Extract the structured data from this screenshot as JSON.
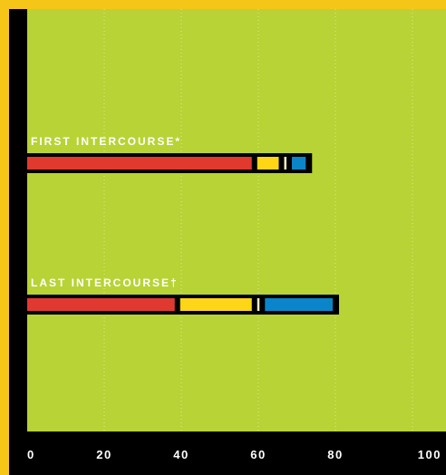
{
  "chart_data": {
    "type": "bar",
    "orientation": "horizontal",
    "stacked": true,
    "categories": [
      "FIRST INTERCOURSE*",
      "LAST INTERCOURSE†"
    ],
    "series": [
      {
        "values": [
          59,
          39
        ]
      },
      {
        "values": [
          7,
          20
        ]
      },
      {
        "values": [
          2,
          2
        ]
      },
      {
        "values": [
          5,
          19
        ]
      }
    ],
    "xlim": [
      0,
      100
    ],
    "x_ticks": [
      "0",
      "20",
      "40",
      "60",
      "80",
      "100"
    ],
    "grid": "vertical dotted",
    "colors": {
      "background": "#b7d335",
      "series": [
        "#e03a2f",
        "#ffd616",
        "#f4f0c0",
        "#0a86c8"
      ],
      "frame": "#000000",
      "outer": "#f5c518",
      "text": "#ffffff"
    }
  }
}
